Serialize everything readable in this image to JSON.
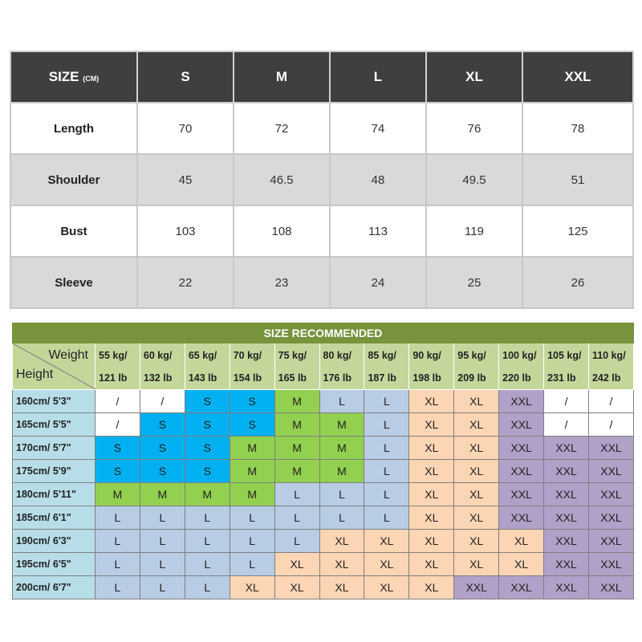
{
  "size_table": {
    "header_label": "SIZE",
    "header_unit": "(CM)",
    "sizes": [
      "S",
      "M",
      "L",
      "XL",
      "XXL"
    ],
    "rows": [
      {
        "label": "Length",
        "values": [
          "70",
          "72",
          "74",
          "76",
          "78"
        ]
      },
      {
        "label": "Shoulder",
        "values": [
          "45",
          "46.5",
          "48",
          "49.5",
          "51"
        ]
      },
      {
        "label": "Bust",
        "values": [
          "103",
          "108",
          "113",
          "119",
          "125"
        ]
      },
      {
        "label": "Sleeve",
        "values": [
          "22",
          "23",
          "24",
          "25",
          "26"
        ]
      }
    ]
  },
  "recommend": {
    "title": "SIZE RECOMMENDED",
    "weight_label": "Weight",
    "height_label": "Height",
    "weights": [
      {
        "kg": "55 kg/",
        "lb": "121 lb"
      },
      {
        "kg": "60 kg/",
        "lb": "132 lb"
      },
      {
        "kg": "65 kg/",
        "lb": "143 lb"
      },
      {
        "kg": "70 kg/",
        "lb": "154 lb"
      },
      {
        "kg": "75 kg/",
        "lb": "165 lb"
      },
      {
        "kg": "80 kg/",
        "lb": "176 lb"
      },
      {
        "kg": "85 kg/",
        "lb": "187 lb"
      },
      {
        "kg": "90 kg/",
        "lb": "198 lb"
      },
      {
        "kg": "95 kg/",
        "lb": "209 lb"
      },
      {
        "kg": "100 kg/",
        "lb": "220 lb"
      },
      {
        "kg": "105 kg/",
        "lb": "231 lb"
      },
      {
        "kg": "110 kg/",
        "lb": "242 lb"
      }
    ],
    "rows": [
      {
        "height": "160cm/ 5'3\"",
        "sizes": [
          "/",
          "/",
          "S",
          "S",
          "M",
          "L",
          "L",
          "XL",
          "XL",
          "XXL",
          "/",
          "/"
        ]
      },
      {
        "height": "165cm/ 5'5\"",
        "sizes": [
          "/",
          "S",
          "S",
          "S",
          "M",
          "M",
          "L",
          "XL",
          "XL",
          "XXL",
          "/",
          "/"
        ]
      },
      {
        "height": "170cm/ 5'7\"",
        "sizes": [
          "S",
          "S",
          "S",
          "M",
          "M",
          "M",
          "L",
          "XL",
          "XL",
          "XXL",
          "XXL",
          "XXL"
        ]
      },
      {
        "height": "175cm/ 5'9\"",
        "sizes": [
          "S",
          "S",
          "S",
          "M",
          "M",
          "M",
          "L",
          "XL",
          "XL",
          "XXL",
          "XXL",
          "XXL"
        ]
      },
      {
        "height": "180cm/ 5'11\"",
        "sizes": [
          "M",
          "M",
          "M",
          "M",
          "L",
          "L",
          "L",
          "XL",
          "XL",
          "XXL",
          "XXL",
          "XXL"
        ]
      },
      {
        "height": "185cm/ 6'1\"",
        "sizes": [
          "L",
          "L",
          "L",
          "L",
          "L",
          "L",
          "L",
          "XL",
          "XL",
          "XXL",
          "XXL",
          "XXL"
        ]
      },
      {
        "height": "190cm/ 6'3\"",
        "sizes": [
          "L",
          "L",
          "L",
          "L",
          "L",
          "XL",
          "XL",
          "XL",
          "XL",
          "XL",
          "XXL",
          "XXL"
        ]
      },
      {
        "height": "195cm/ 6'5\"",
        "sizes": [
          "L",
          "L",
          "L",
          "L",
          "XL",
          "XL",
          "XL",
          "XL",
          "XL",
          "XL",
          "XXL",
          "XXL"
        ]
      },
      {
        "height": "200cm/ 6'7\"",
        "sizes": [
          "L",
          "L",
          "L",
          "XL",
          "XL",
          "XL",
          "XL",
          "XL",
          "XXL",
          "XXL",
          "XXL",
          "XXL"
        ]
      }
    ],
    "colors": {
      "S": "#00b0f0",
      "M": "#92d050",
      "L": "#b8cce4",
      "XL": "#fcd5b4",
      "XXL": "#b1a0c7",
      "/": "#ffffff",
      "title": "#77933c",
      "weight_header": "#c4d79b",
      "height_column": "#b7dee8"
    }
  }
}
